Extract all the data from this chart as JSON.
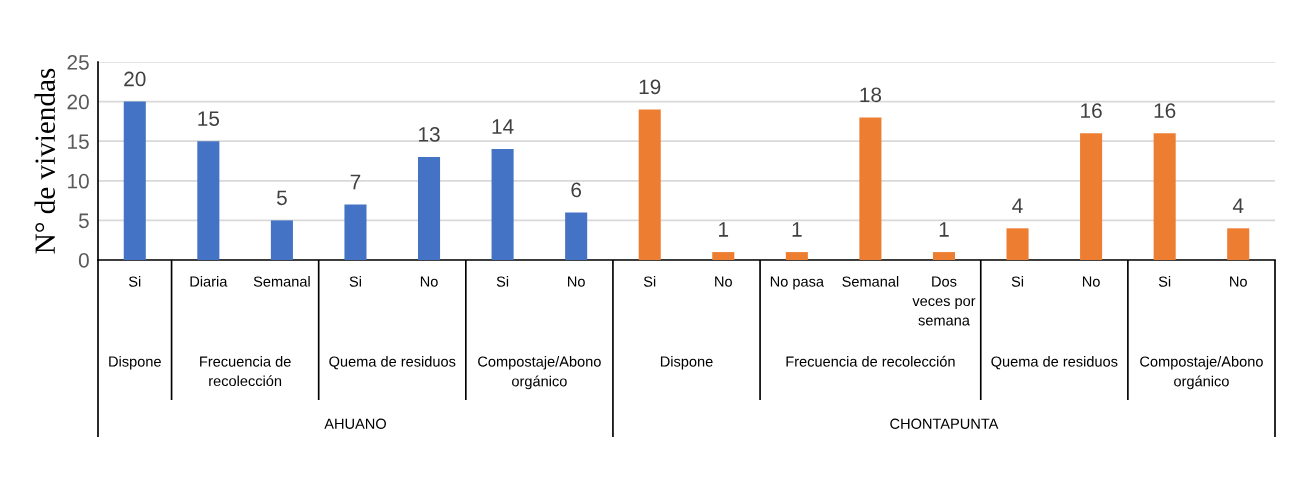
{
  "chart_data": {
    "type": "bar",
    "ylabel": "N° de viviendas",
    "categories": [
      "Si",
      "Diaria",
      "Semanal",
      "Si",
      "No",
      "Si",
      "No",
      "Si",
      "No",
      "No pasa",
      "Semanal",
      "Dos veces por semana",
      "Si",
      "No",
      "Si",
      "No"
    ],
    "values": [
      20,
      15,
      5,
      7,
      13,
      14,
      6,
      19,
      1,
      1,
      18,
      1,
      4,
      16,
      16,
      4
    ],
    "colors": [
      "#4472c4",
      "#4472c4",
      "#4472c4",
      "#4472c4",
      "#4472c4",
      "#4472c4",
      "#4472c4",
      "#ed7d31",
      "#ed7d31",
      "#ed7d31",
      "#ed7d31",
      "#ed7d31",
      "#ed7d31",
      "#ed7d31",
      "#ed7d31",
      "#ed7d31"
    ],
    "ylim": [
      0,
      25
    ],
    "yticks": [
      0,
      5,
      10,
      15,
      20,
      25
    ],
    "grid": "y",
    "data_labels": true,
    "annotations": [
      "Dispone",
      "Frecuencia de recolección",
      "Quema de residuos",
      "Compostaje/Abono orgánico",
      "Dispone",
      "Frecuencia de recolección",
      "Quema de residuos",
      "Compostaje/Abono orgánico",
      "AHUANO",
      "CHONTAPUNTA"
    ]
  }
}
